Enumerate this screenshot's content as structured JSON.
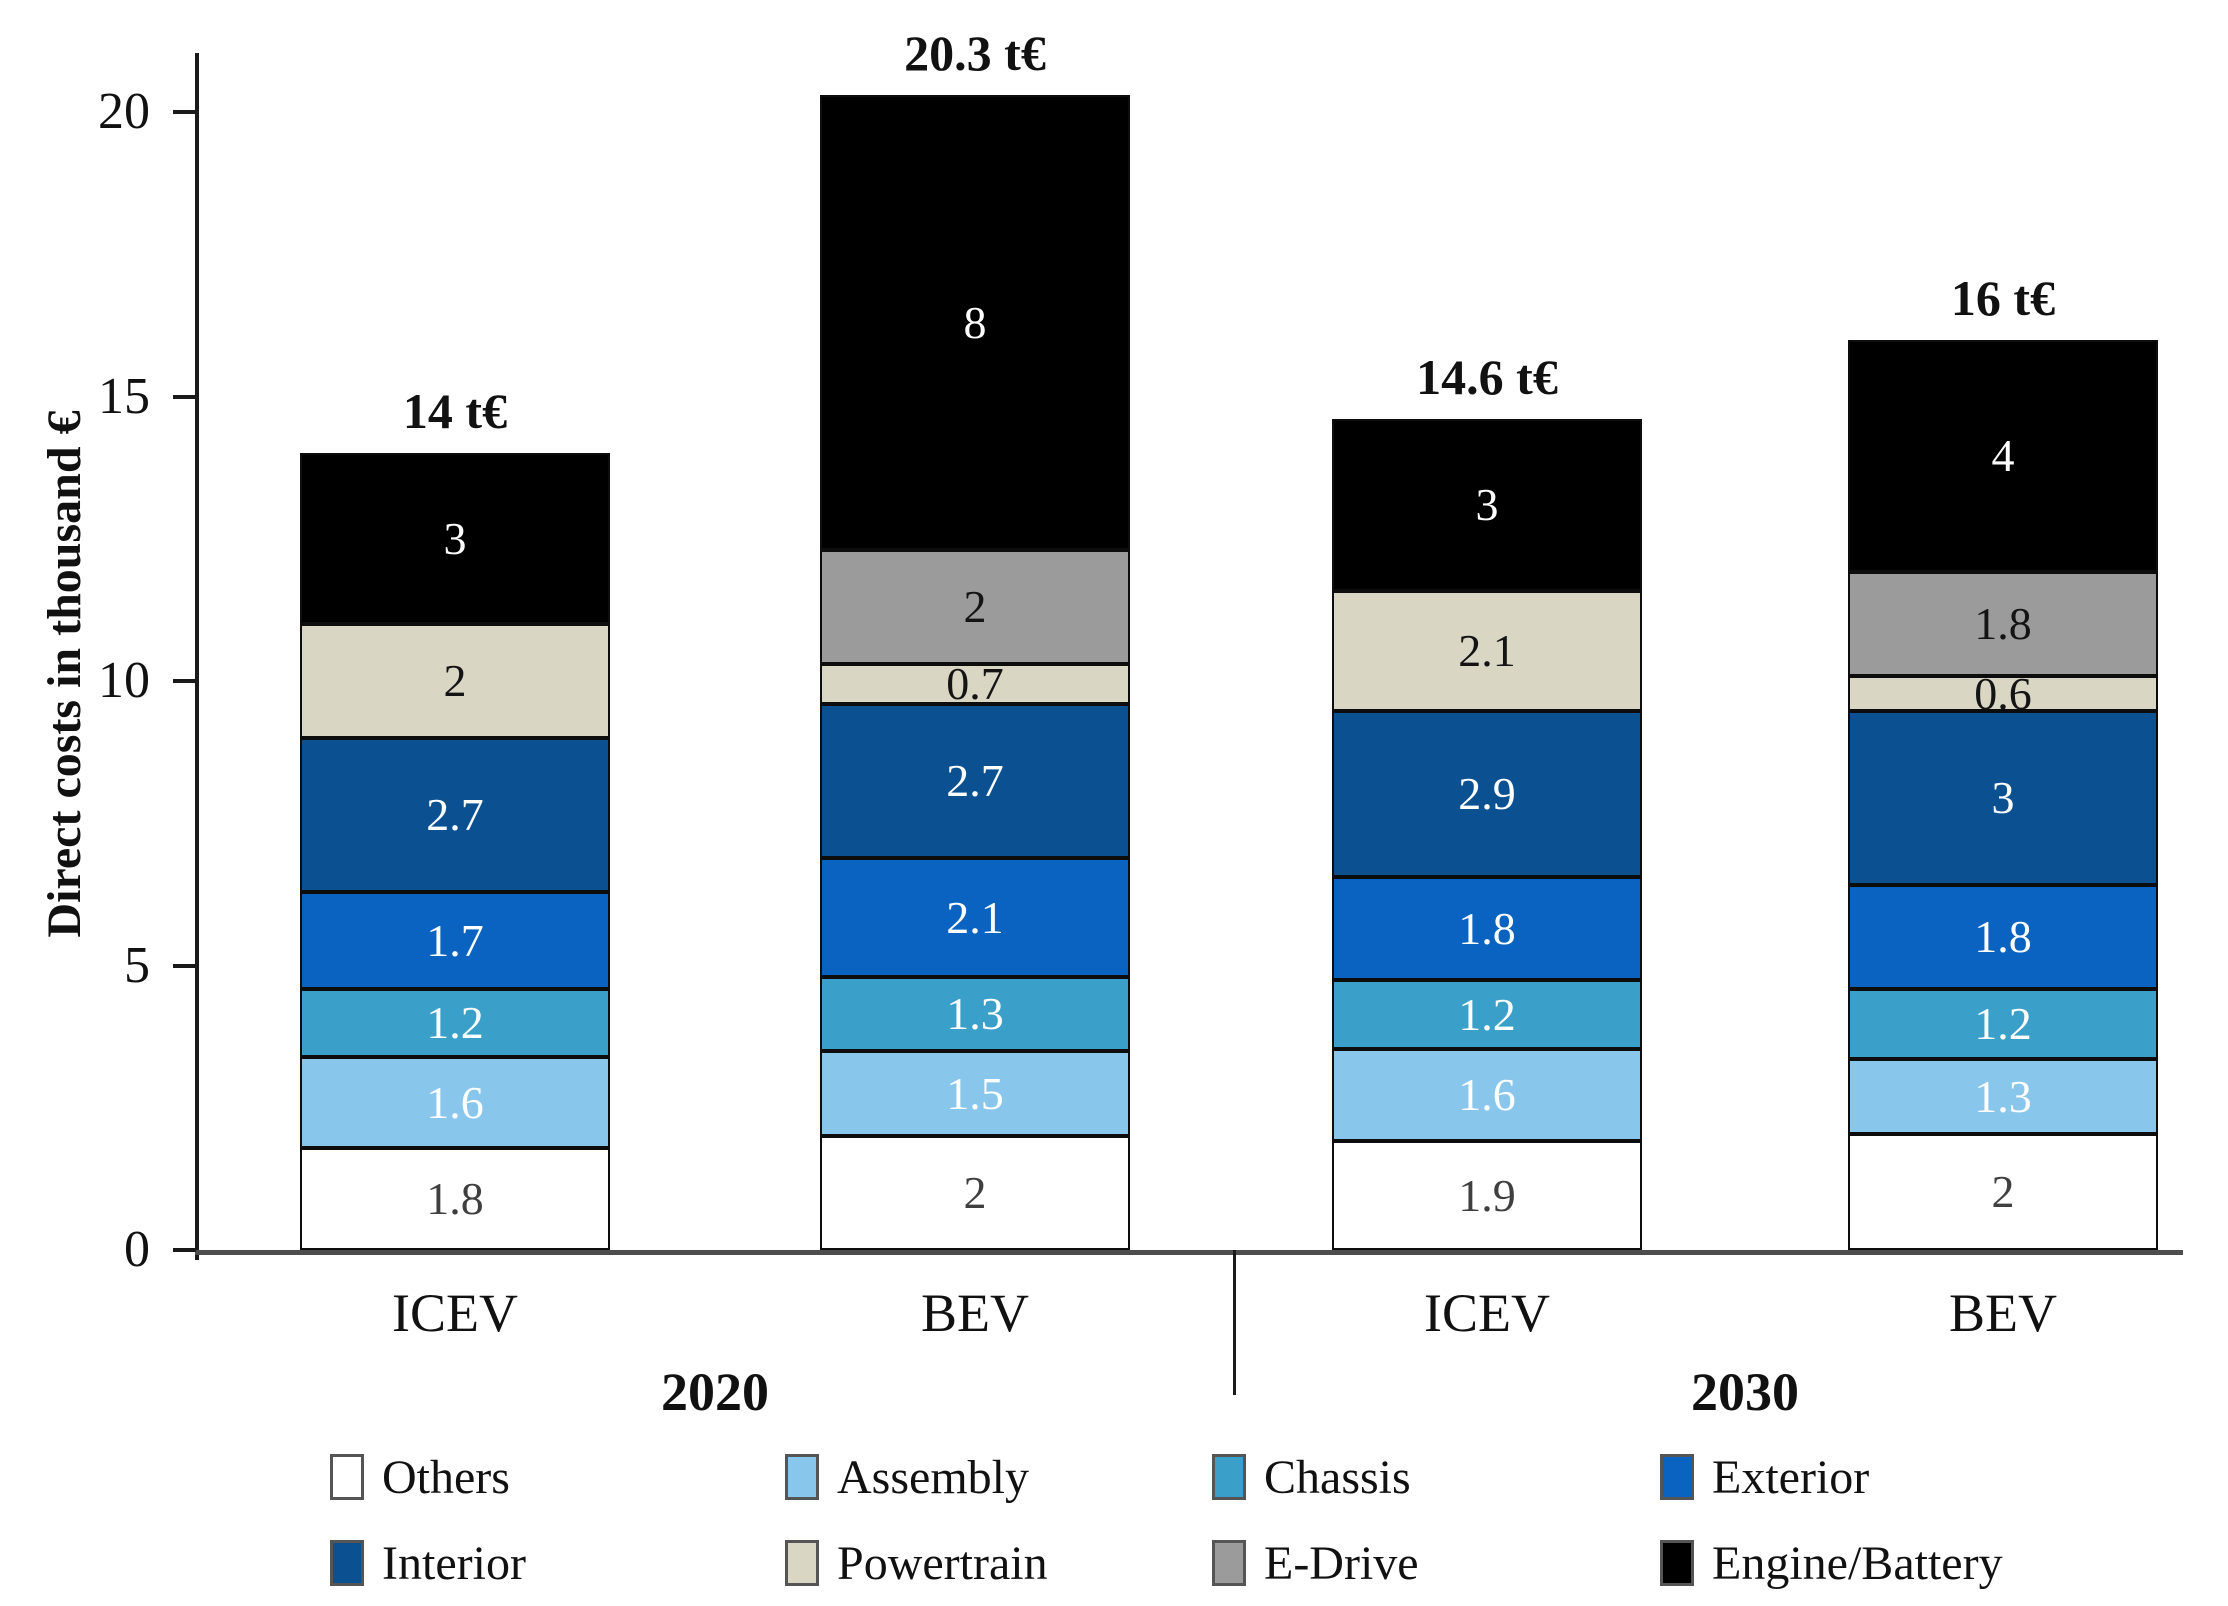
{
  "chart_data": {
    "type": "bar",
    "stacked": true,
    "title": "",
    "ylabel": "Direct costs in thousand €",
    "xlabel": "",
    "ylim": [
      0,
      21
    ],
    "yticks": [
      0,
      5,
      10,
      15,
      20
    ],
    "grid": false,
    "categories": [
      "ICEV",
      "BEV",
      "ICEV",
      "BEV"
    ],
    "category_groups": [
      {
        "label": "2020",
        "categories": [
          0,
          1
        ]
      },
      {
        "label": "2030",
        "categories": [
          2,
          3
        ]
      }
    ],
    "totals": [
      "14 t€",
      "20.3 t€",
      "14.6 t€",
      "16 t€"
    ],
    "series": [
      {
        "name": "Others",
        "color": "#ffffff",
        "text_color": "#3f3f3f",
        "values": [
          1.8,
          2,
          1.9,
          2
        ]
      },
      {
        "name": "Assembly",
        "color": "#89c6eb",
        "text_color": "#ffffff",
        "values": [
          1.6,
          1.5,
          1.6,
          1.3
        ]
      },
      {
        "name": "Chassis",
        "color": "#3ba0c9",
        "text_color": "#ffffff",
        "values": [
          1.2,
          1.3,
          1.2,
          1.2
        ]
      },
      {
        "name": "Exterior",
        "color": "#0a63c0",
        "text_color": "#ffffff",
        "values": [
          1.7,
          2.1,
          1.8,
          1.8
        ]
      },
      {
        "name": "Interior",
        "color": "#0b5192",
        "text_color": "#ffffff",
        "values": [
          2.7,
          2.7,
          2.9,
          3
        ]
      },
      {
        "name": "Powertrain",
        "color": "#dad6c4",
        "text_color": "#141414",
        "values": [
          2,
          0.7,
          2.1,
          0.6
        ]
      },
      {
        "name": "E-Drive",
        "color": "#9b9b9b",
        "text_color": "#141414",
        "values": [
          0,
          2,
          0,
          1.8
        ]
      },
      {
        "name": "Engine/Battery",
        "color": "#000000",
        "text_color": "#ffffff",
        "values": [
          3,
          8,
          3,
          4
        ]
      }
    ],
    "legend": {
      "position": "bottom",
      "entries": [
        "Others",
        "Assembly",
        "Chassis",
        "Exterior",
        "Interior",
        "Powertrain",
        "E-Drive",
        "Engine/Battery"
      ]
    }
  }
}
